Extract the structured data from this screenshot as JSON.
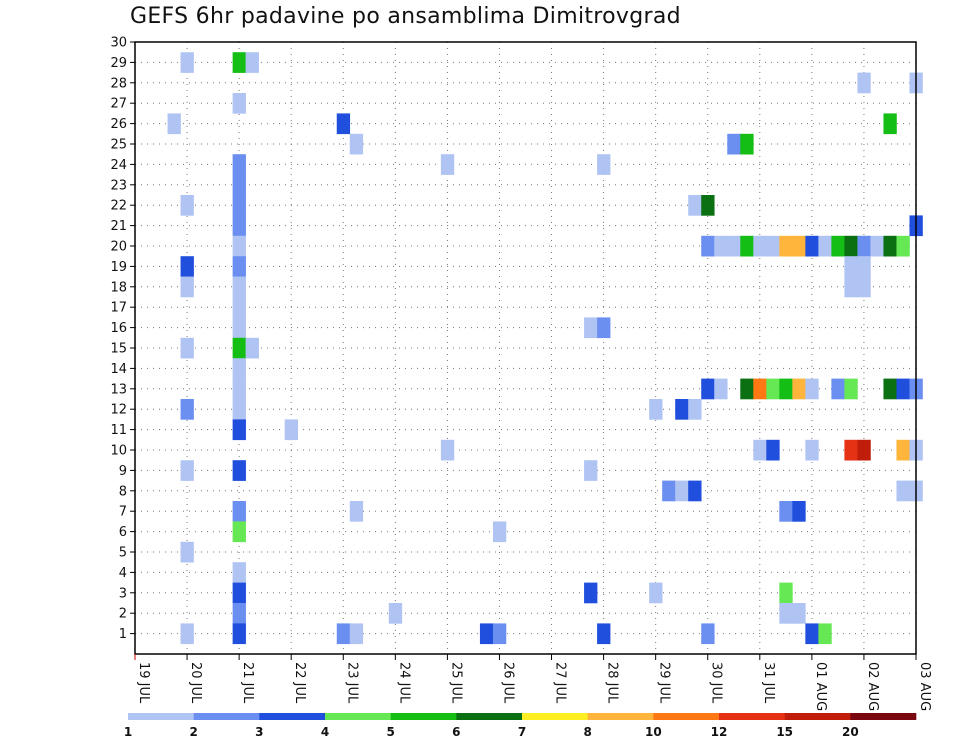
{
  "chart_data": {
    "type": "heatmap",
    "title": "GEFS 6hr padavine po ansamblima Dimitrovgrad",
    "xlabel": "",
    "ylabel": "",
    "x_ticks": [
      "19 JUL",
      "20 JUL",
      "21 JUL",
      "22 JUL",
      "23 JUL",
      "24 JUL",
      "25 JUL",
      "26 JUL",
      "27 JUL",
      "28 JUL",
      "29 JUL",
      "30 JUL",
      "31 JUL",
      "01 AUG",
      "02 AUG",
      "03 AUG"
    ],
    "y_ticks": [
      "1",
      "2",
      "3",
      "4",
      "5",
      "6",
      "7",
      "8",
      "9",
      "10",
      "11",
      "12",
      "13",
      "14",
      "15",
      "16",
      "17",
      "18",
      "19",
      "20",
      "21",
      "22",
      "23",
      "24",
      "25",
      "26",
      "27",
      "28",
      "29",
      "30"
    ],
    "xlim": [
      0,
      15
    ],
    "ylim": [
      0,
      30
    ],
    "grid": true,
    "legend": {
      "position": "bottom",
      "levels": [
        "1",
        "2",
        "3",
        "4",
        "5",
        "6",
        "7",
        "8",
        "10",
        "12",
        "15",
        "20"
      ],
      "colors": [
        "#b0c4f4",
        "#6b8ff0",
        "#1f4fdc",
        "#66e854",
        "#14be14",
        "#0a7012",
        "#ffee22",
        "#ffb43c",
        "#ff7814",
        "#e63214",
        "#c01e0a",
        "#7a0810"
      ]
    },
    "cells": [
      {
        "x": 1,
        "y": 29,
        "c": 1
      },
      {
        "x": 2,
        "y": 29,
        "c": 5
      },
      {
        "x": 2.25,
        "y": 29,
        "c": 1
      },
      {
        "x": 15,
        "y": 28,
        "c": 1
      },
      {
        "x": 14,
        "y": 28,
        "c": 1
      },
      {
        "x": 2,
        "y": 27,
        "c": 1
      },
      {
        "x": 0.75,
        "y": 26,
        "c": 1
      },
      {
        "x": 4,
        "y": 26,
        "c": 3
      },
      {
        "x": 14.5,
        "y": 26,
        "c": 5
      },
      {
        "x": 4.25,
        "y": 25,
        "c": 1
      },
      {
        "x": 11.5,
        "y": 25,
        "c": 2
      },
      {
        "x": 11.75,
        "y": 25,
        "c": 5
      },
      {
        "x": 2,
        "y": 24,
        "c": 2
      },
      {
        "x": 6,
        "y": 24,
        "c": 1
      },
      {
        "x": 9,
        "y": 24,
        "c": 1
      },
      {
        "x": 2,
        "y": 23,
        "c": 2
      },
      {
        "x": 1,
        "y": 22,
        "c": 1
      },
      {
        "x": 2,
        "y": 22,
        "c": 2
      },
      {
        "x": 10.75,
        "y": 22,
        "c": 1
      },
      {
        "x": 11,
        "y": 22,
        "c": 6
      },
      {
        "x": 2,
        "y": 21,
        "c": 2
      },
      {
        "x": 15,
        "y": 21,
        "c": 3
      },
      {
        "x": 2,
        "y": 20,
        "c": 1
      },
      {
        "x": 11,
        "y": 20,
        "c": 2
      },
      {
        "x": 11.25,
        "y": 20,
        "c": 1
      },
      {
        "x": 11.5,
        "y": 20,
        "c": 1
      },
      {
        "x": 11.75,
        "y": 20,
        "c": 5
      },
      {
        "x": 12,
        "y": 20,
        "c": 1
      },
      {
        "x": 12.25,
        "y": 20,
        "c": 1
      },
      {
        "x": 12.5,
        "y": 20,
        "c": 8
      },
      {
        "x": 12.75,
        "y": 20,
        "c": 8
      },
      {
        "x": 13,
        "y": 20,
        "c": 3
      },
      {
        "x": 13.25,
        "y": 20,
        "c": 1
      },
      {
        "x": 13.5,
        "y": 20,
        "c": 5
      },
      {
        "x": 13.75,
        "y": 20,
        "c": 6
      },
      {
        "x": 14,
        "y": 20,
        "c": 2
      },
      {
        "x": 14.25,
        "y": 20,
        "c": 1
      },
      {
        "x": 14.5,
        "y": 20,
        "c": 6
      },
      {
        "x": 14.75,
        "y": 20,
        "c": 4
      },
      {
        "x": 1,
        "y": 19,
        "c": 3
      },
      {
        "x": 2,
        "y": 19,
        "c": 2
      },
      {
        "x": 13.75,
        "y": 19,
        "c": 1
      },
      {
        "x": 14,
        "y": 19,
        "c": 1
      },
      {
        "x": 1,
        "y": 18,
        "c": 1
      },
      {
        "x": 2,
        "y": 18,
        "c": 1
      },
      {
        "x": 13.75,
        "y": 18,
        "c": 1
      },
      {
        "x": 14,
        "y": 18,
        "c": 1
      },
      {
        "x": 2,
        "y": 17,
        "c": 1
      },
      {
        "x": 2,
        "y": 16,
        "c": 1
      },
      {
        "x": 8.75,
        "y": 16,
        "c": 1
      },
      {
        "x": 9,
        "y": 16,
        "c": 2
      },
      {
        "x": 1,
        "y": 15,
        "c": 1
      },
      {
        "x": 2,
        "y": 15,
        "c": 5
      },
      {
        "x": 2.25,
        "y": 15,
        "c": 1
      },
      {
        "x": 2,
        "y": 14,
        "c": 1
      },
      {
        "x": 2,
        "y": 13,
        "c": 1
      },
      {
        "x": 11,
        "y": 13,
        "c": 3
      },
      {
        "x": 11.25,
        "y": 13,
        "c": 1
      },
      {
        "x": 11.75,
        "y": 13,
        "c": 6
      },
      {
        "x": 12,
        "y": 13,
        "c": 9
      },
      {
        "x": 12.25,
        "y": 13,
        "c": 4
      },
      {
        "x": 12.5,
        "y": 13,
        "c": 5
      },
      {
        "x": 12.75,
        "y": 13,
        "c": 8
      },
      {
        "x": 13,
        "y": 13,
        "c": 1
      },
      {
        "x": 13.5,
        "y": 13,
        "c": 2
      },
      {
        "x": 13.75,
        "y": 13,
        "c": 4
      },
      {
        "x": 14.5,
        "y": 13,
        "c": 6
      },
      {
        "x": 14.75,
        "y": 13,
        "c": 3
      },
      {
        "x": 15,
        "y": 13,
        "c": 2
      },
      {
        "x": 1,
        "y": 12,
        "c": 2
      },
      {
        "x": 2,
        "y": 12,
        "c": 1
      },
      {
        "x": 10,
        "y": 12,
        "c": 1
      },
      {
        "x": 10.5,
        "y": 12,
        "c": 3
      },
      {
        "x": 10.75,
        "y": 12,
        "c": 1
      },
      {
        "x": 2,
        "y": 11,
        "c": 3
      },
      {
        "x": 3,
        "y": 11,
        "c": 1
      },
      {
        "x": 6,
        "y": 10,
        "c": 1
      },
      {
        "x": 12,
        "y": 10,
        "c": 1
      },
      {
        "x": 12.25,
        "y": 10,
        "c": 3
      },
      {
        "x": 13,
        "y": 10,
        "c": 1
      },
      {
        "x": 13.75,
        "y": 10,
        "c": 10
      },
      {
        "x": 14,
        "y": 10,
        "c": 11
      },
      {
        "x": 14.75,
        "y": 10,
        "c": 8
      },
      {
        "x": 15,
        "y": 10,
        "c": 1
      },
      {
        "x": 1,
        "y": 9,
        "c": 1
      },
      {
        "x": 2,
        "y": 9,
        "c": 3
      },
      {
        "x": 8.75,
        "y": 9,
        "c": 1
      },
      {
        "x": 10.25,
        "y": 8,
        "c": 2
      },
      {
        "x": 10.5,
        "y": 8,
        "c": 1
      },
      {
        "x": 10.75,
        "y": 8,
        "c": 3
      },
      {
        "x": 14.75,
        "y": 8,
        "c": 1
      },
      {
        "x": 15,
        "y": 8,
        "c": 1
      },
      {
        "x": 2,
        "y": 7,
        "c": 2
      },
      {
        "x": 4.25,
        "y": 7,
        "c": 1
      },
      {
        "x": 12.5,
        "y": 7,
        "c": 2
      },
      {
        "x": 12.75,
        "y": 7,
        "c": 3
      },
      {
        "x": 2,
        "y": 6,
        "c": 4
      },
      {
        "x": 7,
        "y": 6,
        "c": 1
      },
      {
        "x": 1,
        "y": 5,
        "c": 1
      },
      {
        "x": 2,
        "y": 4,
        "c": 1
      },
      {
        "x": 2,
        "y": 3,
        "c": 3
      },
      {
        "x": 8.75,
        "y": 3,
        "c": 3
      },
      {
        "x": 10,
        "y": 3,
        "c": 1
      },
      {
        "x": 12.5,
        "y": 3,
        "c": 4
      },
      {
        "x": 2,
        "y": 2,
        "c": 2
      },
      {
        "x": 5,
        "y": 2,
        "c": 1
      },
      {
        "x": 12.5,
        "y": 2,
        "c": 1
      },
      {
        "x": 12.75,
        "y": 2,
        "c": 1
      },
      {
        "x": 1,
        "y": 1,
        "c": 1
      },
      {
        "x": 2,
        "y": 1,
        "c": 3
      },
      {
        "x": 4,
        "y": 1,
        "c": 2
      },
      {
        "x": 4.25,
        "y": 1,
        "c": 1
      },
      {
        "x": 6.75,
        "y": 1,
        "c": 3
      },
      {
        "x": 7,
        "y": 1,
        "c": 2
      },
      {
        "x": 9,
        "y": 1,
        "c": 3
      },
      {
        "x": 11,
        "y": 1,
        "c": 2
      },
      {
        "x": 13,
        "y": 1,
        "c": 3
      },
      {
        "x": 13.25,
        "y": 1,
        "c": 4
      }
    ]
  }
}
